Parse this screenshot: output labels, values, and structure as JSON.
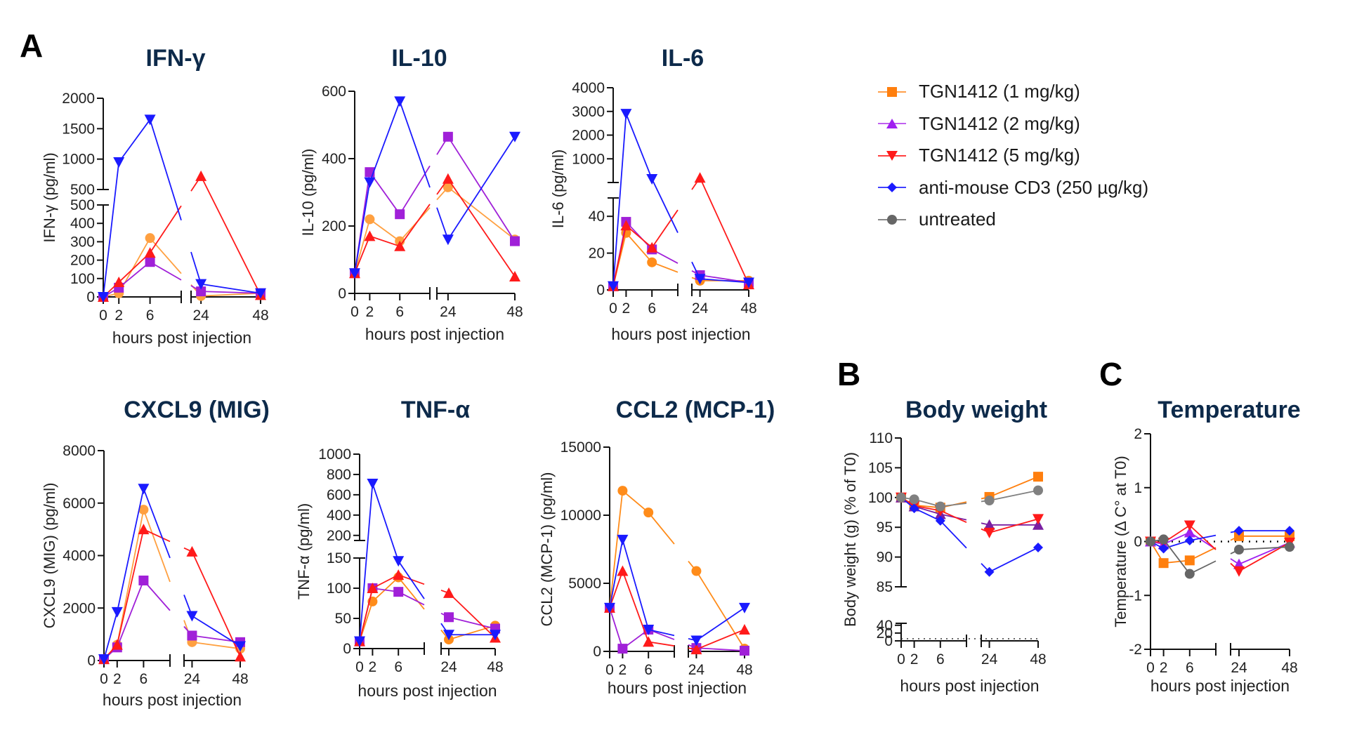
{
  "panel_letters": {
    "a": "A",
    "b": "B",
    "c": "C"
  },
  "legend": {
    "items": [
      {
        "label": "TGN1412 (1 mg/kg)",
        "color": "#ff7f0e",
        "marker": "square"
      },
      {
        "label": "TGN1412 (2 mg/kg)",
        "color": "#a020f0",
        "marker": "triangle-up"
      },
      {
        "label": "TGN1412 (5 mg/kg)",
        "color": "#ff1a1a",
        "marker": "triangle-down"
      },
      {
        "label": "anti-mouse CD3 (250 µg/kg)",
        "color": "#1a1aff",
        "marker": "diamond"
      },
      {
        "label": "untreated",
        "color": "#666666",
        "marker": "circle"
      }
    ]
  },
  "chart_data": [
    {
      "id": "ifng",
      "type": "line",
      "title": "IFN-γ",
      "ylabel": "IFN-γ (pg/ml)",
      "xlabel": "hours post injection",
      "x": [
        0,
        2,
        6,
        24,
        48
      ],
      "xticks": [
        "0",
        "2",
        "6",
        "24",
        "48"
      ],
      "y_segments": [
        {
          "range": [
            0,
            500
          ],
          "ticks": [
            0,
            100,
            200,
            300,
            400,
            500
          ]
        },
        {
          "range": [
            500,
            2000
          ],
          "ticks": [
            500,
            1000,
            1500,
            2000
          ]
        }
      ],
      "series": [
        {
          "name": "TGN1412 (1 mg/kg)",
          "color": "#ffa040",
          "marker": "circle",
          "values": [
            0,
            20,
            320,
            5,
            20
          ]
        },
        {
          "name": "TGN1412 (2 mg/kg)",
          "color": "#a020d8",
          "marker": "square",
          "values": [
            0,
            50,
            190,
            30,
            20
          ]
        },
        {
          "name": "TGN1412 (5 mg/kg)",
          "color": "#ff1a1a",
          "marker": "triangle-up",
          "values": [
            0,
            80,
            240,
            720,
            10
          ]
        },
        {
          "name": "anti-mouse CD3 (250 µg/kg)",
          "color": "#1a1aff",
          "marker": "triangle-down",
          "values": [
            0,
            950,
            1650,
            70,
            20
          ]
        }
      ]
    },
    {
      "id": "il10",
      "type": "line",
      "title": "IL-10",
      "ylabel": "IL-10 (pg/ml)",
      "xlabel": "hours post injection",
      "x": [
        0,
        2,
        6,
        24,
        48
      ],
      "xticks": [
        "0",
        "2",
        "6",
        "24",
        "48"
      ],
      "y_segments": [
        {
          "range": [
            0,
            600
          ],
          "ticks": [
            0,
            200,
            400,
            600
          ]
        }
      ],
      "series": [
        {
          "name": "TGN1412 (1 mg/kg)",
          "color": "#ffa040",
          "marker": "circle",
          "values": [
            60,
            220,
            155,
            315,
            160
          ]
        },
        {
          "name": "TGN1412 (2 mg/kg)",
          "color": "#a020d8",
          "marker": "square",
          "values": [
            60,
            360,
            235,
            465,
            155
          ]
        },
        {
          "name": "TGN1412 (5 mg/kg)",
          "color": "#ff1a1a",
          "marker": "triangle-up",
          "values": [
            60,
            170,
            140,
            340,
            50
          ]
        },
        {
          "name": "anti-mouse CD3 (250 µg/kg)",
          "color": "#1a1aff",
          "marker": "triangle-down",
          "values": [
            60,
            330,
            570,
            160,
            465
          ]
        }
      ]
    },
    {
      "id": "il6",
      "type": "line",
      "title": "IL-6",
      "ylabel": "IL-6 (pg/ml)",
      "xlabel": "hours post injection",
      "x": [
        0,
        2,
        6,
        24,
        48
      ],
      "xticks": [
        "0",
        "2",
        "6",
        "24",
        "48"
      ],
      "y_segments": [
        {
          "range": [
            0,
            50
          ],
          "ticks": [
            0,
            20,
            40
          ]
        },
        {
          "range": [
            0,
            4000
          ],
          "ticks": [
            1000,
            2000,
            3000,
            4000
          ]
        }
      ],
      "series": [
        {
          "name": "TGN1412 (1 mg/kg)",
          "color": "#ff8c1a",
          "marker": "circle",
          "values": [
            2,
            31,
            15,
            5,
            5
          ]
        },
        {
          "name": "TGN1412 (2 mg/kg)",
          "color": "#a020d8",
          "marker": "square",
          "values": [
            2,
            37,
            22,
            8,
            4
          ]
        },
        {
          "name": "TGN1412 (5 mg/kg)",
          "color": "#ff1a1a",
          "marker": "triangle-up",
          "values": [
            2,
            35,
            23,
            200,
            3
          ]
        },
        {
          "name": "anti-mouse CD3 (250 µg/kg)",
          "color": "#1a1aff",
          "marker": "triangle-down",
          "values": [
            2,
            2900,
            150,
            6,
            4
          ]
        }
      ]
    },
    {
      "id": "cxcl9",
      "type": "line",
      "title": "CXCL9 (MIG)",
      "ylabel": "CXCL9 (MIG) (pg/ml)",
      "xlabel": "hours post injection",
      "x": [
        0,
        2,
        6,
        24,
        48
      ],
      "xticks": [
        "0",
        "2",
        "6",
        "24",
        "48"
      ],
      "y_segments": [
        {
          "range": [
            0,
            8000
          ],
          "ticks": [
            0,
            2000,
            4000,
            6000,
            8000
          ]
        }
      ],
      "series": [
        {
          "name": "TGN1412 (1 mg/kg)",
          "color": "#ffa040",
          "marker": "circle",
          "values": [
            50,
            600,
            5750,
            700,
            450
          ]
        },
        {
          "name": "TGN1412 (2 mg/kg)",
          "color": "#a020d8",
          "marker": "square",
          "values": [
            50,
            500,
            3050,
            950,
            700
          ]
        },
        {
          "name": "TGN1412 (5 mg/kg)",
          "color": "#ff1a1a",
          "marker": "triangle-up",
          "values": [
            50,
            600,
            5000,
            4150,
            150
          ]
        },
        {
          "name": "anti-mouse CD3 (250 µg/kg)",
          "color": "#1a1aff",
          "marker": "triangle-down",
          "values": [
            50,
            1850,
            6550,
            1700,
            550
          ]
        }
      ]
    },
    {
      "id": "tnfa",
      "type": "line",
      "title": "TNF-α",
      "ylabel": "TNF-α (pg/ml)",
      "xlabel": "hours post injection",
      "x": [
        0,
        2,
        6,
        24,
        48
      ],
      "xticks": [
        "0",
        "2",
        "6",
        "24",
        "48"
      ],
      "y_segments": [
        {
          "range": [
            0,
            150
          ],
          "ticks": [
            0,
            50,
            100,
            150
          ]
        },
        {
          "range": [
            150,
            1000
          ],
          "ticks": [
            200,
            400,
            600,
            800,
            1000
          ]
        }
      ],
      "series": [
        {
          "name": "TGN1412 (1 mg/kg)",
          "color": "#ff8c1a",
          "marker": "circle",
          "values": [
            12,
            78,
            118,
            15,
            38
          ]
        },
        {
          "name": "TGN1412 (2 mg/kg)",
          "color": "#a020d8",
          "marker": "square",
          "values": [
            12,
            100,
            94,
            52,
            33
          ]
        },
        {
          "name": "TGN1412 (5 mg/kg)",
          "color": "#ff1a1a",
          "marker": "triangle-up",
          "values": [
            12,
            100,
            122,
            92,
            18
          ]
        },
        {
          "name": "anti-mouse CD3 (250 µg/kg)",
          "color": "#1a1aff",
          "marker": "triangle-down",
          "values": [
            12,
            710,
            145,
            23,
            23
          ]
        }
      ]
    },
    {
      "id": "ccl2",
      "type": "line",
      "title": "CCL2 (MCP-1)",
      "ylabel": "CCL2 (MCP-1) (pg/ml)",
      "xlabel": "hours post injection",
      "x": [
        0,
        2,
        6,
        24,
        48
      ],
      "xticks": [
        "0",
        "2",
        "6",
        "24",
        "48"
      ],
      "y_segments": [
        {
          "range": [
            0,
            15000
          ],
          "ticks": [
            0,
            5000,
            10000,
            15000
          ]
        }
      ],
      "series": [
        {
          "name": "TGN1412 (1 mg/kg)",
          "color": "#ff8c1a",
          "marker": "circle",
          "values": [
            3200,
            11800,
            10200,
            5900,
            200
          ]
        },
        {
          "name": "TGN1412 (2 mg/kg)",
          "color": "#a020d8",
          "marker": "square",
          "values": [
            3200,
            200,
            1600,
            250,
            50
          ]
        },
        {
          "name": "TGN1412 (5 mg/kg)",
          "color": "#ff1a1a",
          "marker": "triangle-up",
          "values": [
            3200,
            5900,
            700,
            150,
            1600
          ]
        },
        {
          "name": "anti-mouse CD3 (250 µg/kg)",
          "color": "#1a1aff",
          "marker": "triangle-down",
          "values": [
            3200,
            8200,
            1600,
            800,
            3200
          ]
        }
      ]
    },
    {
      "id": "bodyweight",
      "type": "line",
      "title": "Body weight",
      "ylabel": "Body weight (g) (% of T0)",
      "xlabel": "hours post injection",
      "x": [
        0,
        2,
        6,
        24,
        48
      ],
      "xticks": [
        "0",
        "2",
        "6",
        "24",
        "48"
      ],
      "y_segments": [
        {
          "range": [
            0,
            45
          ],
          "ticks": [
            0,
            20,
            40
          ]
        },
        {
          "range": [
            85,
            110
          ],
          "ticks": [
            85,
            90,
            95,
            100,
            105,
            110
          ]
        }
      ],
      "dotted_baseline": 0,
      "series": [
        {
          "name": "TGN1412 (1 mg/kg)",
          "color": "#ff7f0e",
          "marker": "square",
          "values": [
            100,
            98.7,
            98.3,
            100.1,
            103.5
          ]
        },
        {
          "name": "TGN1412 (2 mg/kg)",
          "color": "#7a1fa2",
          "marker": "triangle-up",
          "values": [
            100,
            98.5,
            97.2,
            95.4,
            95.4
          ]
        },
        {
          "name": "TGN1412 (5 mg/kg)",
          "color": "#ff1a1a",
          "marker": "triangle-down",
          "values": [
            100,
            98.6,
            97.8,
            94.1,
            96.4
          ]
        },
        {
          "name": "anti-mouse CD3 (250 µg/kg)",
          "color": "#1a1aff",
          "marker": "diamond",
          "values": [
            100,
            98.2,
            96.1,
            87.5,
            91.6
          ]
        },
        {
          "name": "untreated",
          "color": "#808080",
          "marker": "circle",
          "values": [
            100,
            99.7,
            98.5,
            99.5,
            101.2
          ]
        }
      ]
    },
    {
      "id": "temperature",
      "type": "line",
      "title": "Temperature",
      "ylabel": "Temperature (Δ C° at T0)",
      "xlabel": "hours post injection",
      "x": [
        0,
        2,
        6,
        24,
        48
      ],
      "xticks": [
        "0",
        "2",
        "6",
        "24",
        "48"
      ],
      "y_segments": [
        {
          "range": [
            -2,
            2
          ],
          "ticks": [
            -2,
            -1,
            0,
            1,
            2
          ]
        }
      ],
      "dotted_line_y": 0,
      "series": [
        {
          "name": "TGN1412 (1 mg/kg)",
          "color": "#ff7f0e",
          "marker": "square",
          "values": [
            0,
            -0.4,
            -0.35,
            0.1,
            0.1
          ]
        },
        {
          "name": "TGN1412 (2 mg/kg)",
          "color": "#a020f0",
          "marker": "triangle-up",
          "values": [
            0,
            -0.05,
            0.17,
            -0.42,
            -0.02
          ]
        },
        {
          "name": "TGN1412 (5 mg/kg)",
          "color": "#ff1a1a",
          "marker": "triangle-down",
          "values": [
            0,
            -0.02,
            0.3,
            -0.55,
            -0.02
          ]
        },
        {
          "name": "anti-mouse CD3 (250 µg/kg)",
          "color": "#1a1aff",
          "marker": "diamond",
          "values": [
            0,
            -0.13,
            0.02,
            0.2,
            0.2
          ]
        },
        {
          "name": "untreated",
          "color": "#666666",
          "marker": "circle",
          "values": [
            0,
            0.04,
            -0.6,
            -0.15,
            -0.1
          ]
        }
      ]
    }
  ]
}
